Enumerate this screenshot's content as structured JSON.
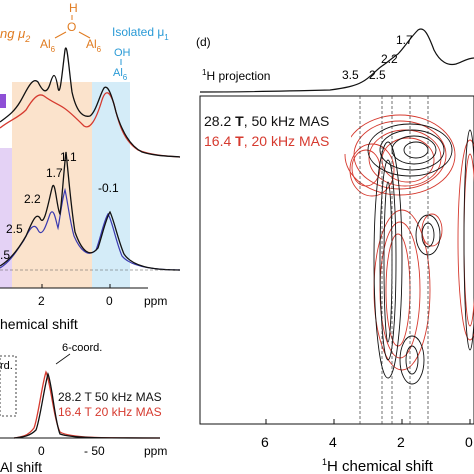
{
  "left_panel": {
    "bridging_label": "ng μ",
    "bridging_sub": "2",
    "bridging_h": "H",
    "bridging_o": "O",
    "bridging_al_left": "Al",
    "bridging_al_right": "Al",
    "bridging_al_sub": "6",
    "isolated_label": "Isolated μ",
    "isolated_sub": "1",
    "isolated_oh": "OH",
    "isolated_al": "Al",
    "isolated_al_sub": "6",
    "peak_labels": [
      "1.1",
      "1.7",
      "2.2",
      "2.5",
      "-0.1",
      ".5"
    ],
    "x_ticks": [
      "2",
      "0",
      "ppm"
    ],
    "x_axis_label": "hemical shift",
    "bottom_annotations": [
      "6-coord.",
      "rd."
    ],
    "bottom_legend": [
      "28.2 T 50 kHz MAS",
      "16.4 T 20 kHz MAS"
    ],
    "bottom_ticks": [
      "0",
      "- 50",
      "ppm"
    ],
    "bottom_axis_label": "Al shift",
    "colors": {
      "orange": "#fbe3cc",
      "blue": "#d4ecf8",
      "purple": "#c9a8e8",
      "black": "#111111",
      "red": "#d63a2f",
      "navy": "#3a3ab0",
      "orange_text": "#e07b20",
      "blue_text": "#2a9ad6"
    }
  },
  "right_panel": {
    "panel_letter": "(d)",
    "projection_label": "H projection",
    "projection_sup": "1",
    "projection_peaks": [
      "1.7",
      "2.2",
      "2.5",
      "3.5"
    ],
    "legend_line1_field": "28.2 ",
    "legend_line1_t": "T",
    "legend_line1_rest": ", 50 kHz MAS",
    "legend_line2_field": "16.4 ",
    "legend_line2_t": "T",
    "legend_line2_rest": ", 20 kHz MAS",
    "x_ticks": [
      "6",
      "4",
      "2",
      "0"
    ],
    "x_axis_sup": "1",
    "x_axis_label": "H chemical shift"
  },
  "chart_data": [
    {
      "type": "line",
      "panel": "1H MAS NMR spectra (partial, left)",
      "x_unit": "ppm",
      "x_ticks": [
        2,
        0
      ],
      "series": [
        {
          "name": "",
          "color": "#111111",
          "x": [
            3.5,
            3.0,
            2.5,
            2.2,
            1.9,
            1.7,
            1.5,
            1.3,
            1.1,
            0.9,
            0.6,
            0.3,
            0.0,
            -0.1,
            -0.3,
            -0.6
          ],
          "y": [
            0.35,
            0.45,
            0.6,
            0.75,
            0.8,
            0.95,
            0.7,
            1.0,
            0.85,
            0.55,
            0.3,
            0.35,
            0.55,
            0.65,
            0.45,
            0.15
          ]
        },
        {
          "name": "",
          "color": "#d63a2f",
          "x": [
            3.5,
            3.0,
            2.5,
            2.2,
            1.9,
            1.7,
            1.5,
            1.3,
            1.1,
            0.9,
            0.6,
            0.3,
            0.0,
            -0.1,
            -0.3,
            -0.6
          ],
          "y": [
            0.45,
            0.5,
            0.55,
            0.5,
            0.45,
            0.45,
            0.4,
            0.4,
            0.35,
            0.3,
            0.25,
            0.3,
            0.5,
            0.6,
            0.45,
            0.15
          ]
        }
      ],
      "annotations": [
        "1.1",
        "1.7",
        "2.2",
        "2.5",
        "-0.1"
      ]
    },
    {
      "type": "line",
      "panel": "27Al MAS NMR spectra (partial, bottom-left)",
      "x_unit": "ppm",
      "x_ticks": [
        0,
        -50
      ],
      "series": [
        {
          "name": "28.2 T 50 kHz MAS",
          "color": "#111111"
        },
        {
          "name": "16.4 T 20 kHz MAS",
          "color": "#d63a2f"
        }
      ]
    },
    {
      "type": "heatmap",
      "panel": "(d) 2D 1H-1H correlation",
      "x_unit": "ppm",
      "x_ticks": [
        6,
        4,
        2,
        0
      ],
      "projection_peaks": [
        1.7,
        2.2,
        2.5,
        3.5
      ],
      "series": [
        {
          "name": "28.2 T, 50 kHz MAS",
          "color": "#111111"
        },
        {
          "name": "16.4 T, 20 kHz MAS",
          "color": "#d63a2f"
        }
      ]
    }
  ]
}
